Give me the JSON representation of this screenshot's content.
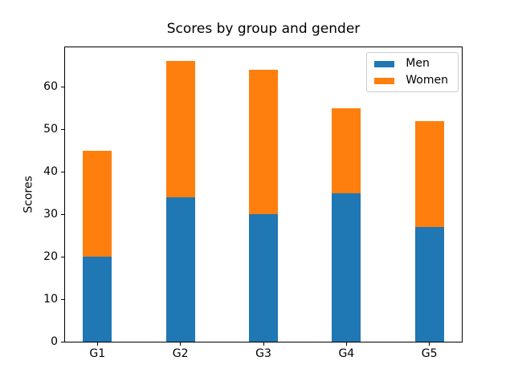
{
  "chart_data": {
    "type": "bar",
    "stacked": true,
    "title": "Scores by group and gender",
    "xlabel": "",
    "ylabel": "Scores",
    "categories": [
      "G1",
      "G2",
      "G3",
      "G4",
      "G5"
    ],
    "series": [
      {
        "name": "Men",
        "color": "#1f77b4",
        "values": [
          20,
          34,
          30,
          35,
          27
        ]
      },
      {
        "name": "Women",
        "color": "#ff7f0e",
        "values": [
          25,
          32,
          34,
          20,
          25
        ]
      }
    ],
    "stacked_totals": [
      45,
      66,
      64,
      55,
      52
    ],
    "ylim": [
      0,
      69.3
    ],
    "yticks": [
      0,
      10,
      20,
      30,
      40,
      50,
      60
    ],
    "xlim": [
      -0.39,
      4.39
    ],
    "bar_width": 0.35,
    "grid": false,
    "legend": {
      "position": "upper right",
      "entries": [
        "Men",
        "Women"
      ]
    },
    "colors": {
      "axis": "#000000",
      "legend_border": "#cccccc",
      "background": "#ffffff"
    }
  }
}
